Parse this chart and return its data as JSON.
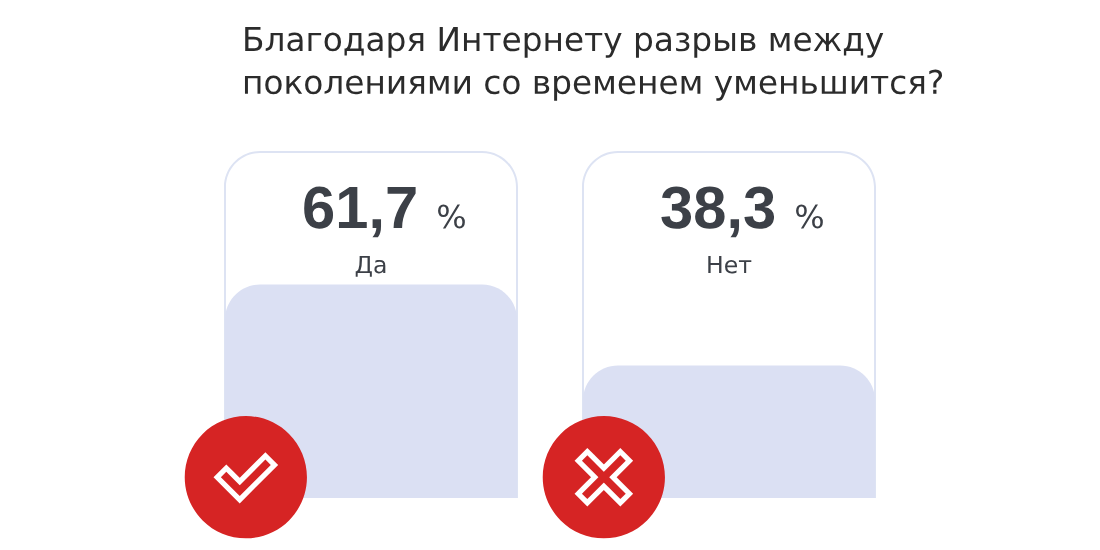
{
  "chart_data": {
    "type": "bar",
    "title": "Благодаря Интернету разрыв между\nпоколениями со временем уменьшится?",
    "categories": [
      "Да",
      "Нет"
    ],
    "values": [
      61.7,
      38.3
    ],
    "color": "#dbe0f3",
    "ylim": [
      0,
      100
    ],
    "value_labels": [
      "61,7 %",
      "38,3 %"
    ],
    "tick_labels": "x"
  }
}
